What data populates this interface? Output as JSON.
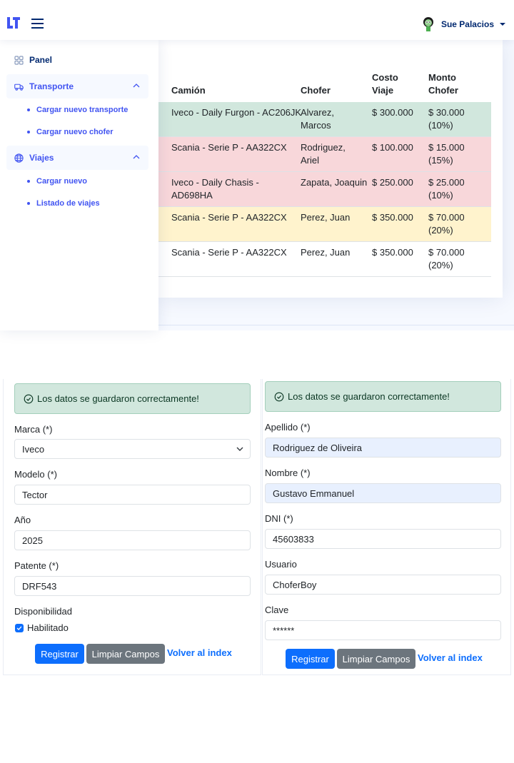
{
  "header": {
    "user_name": "Sue Palacios",
    "icons": {
      "logo": "logo-icon",
      "menu": "hamburger-icon",
      "avatar": "avatar-icon"
    }
  },
  "sidebar": {
    "items": [
      {
        "label": "Panel",
        "icon": "grid-icon"
      },
      {
        "label": "Transporte",
        "icon": "truck-icon",
        "children": [
          "Cargar nuevo transporte",
          "Cargar nuevo chofer"
        ]
      },
      {
        "label": "Viajes",
        "icon": "globe-icon",
        "children": [
          "Cargar nuevo",
          "Listado de viajes"
        ]
      }
    ]
  },
  "trips_table": {
    "headers": {
      "camion": "Camión",
      "chofer": "Chofer",
      "costo_1": "Costo",
      "costo_2": "Viaje",
      "monto_1": "Monto",
      "monto_2": "Chofer"
    },
    "rows": [
      {
        "camion": "Iveco - Daily Furgon - AC206JK",
        "chofer_1": "Alvarez,",
        "chofer_2": "Marcos",
        "costo": "$ 300.000",
        "monto": "$ 30.000 (10%)",
        "status": "success"
      },
      {
        "camion": "Scania - Serie P - AA322CX",
        "chofer_1": "Rodriguez,",
        "chofer_2": "Ariel",
        "costo": "$ 100.000",
        "monto": "$ 15.000 (15%)",
        "status": "danger"
      },
      {
        "camion_1": "Iveco - Daily Chasis -",
        "camion_2": "AD698HA",
        "chofer": "Zapata, Joaquin",
        "costo": "$ 250.000",
        "monto": "$ 25.000 (10%)",
        "status": "danger"
      },
      {
        "camion": "Scania - Serie P - AA322CX",
        "chofer": "Perez, Juan",
        "costo": "$ 350.000",
        "monto": "$ 70.000 (20%)",
        "status": "warning"
      },
      {
        "camion": "Scania - Serie P - AA322CX",
        "chofer": "Perez, Juan",
        "costo": "$ 350.000",
        "monto": "$ 70.000 (20%)",
        "status": "none"
      }
    ],
    "colors": {
      "success": "#d1e7dd",
      "danger": "#f8d7da",
      "warning": "#fff3cd"
    }
  },
  "transport_form": {
    "alert": "Los datos se guardaron correctamente!",
    "marca_label": "Marca (*)",
    "marca_value": "Iveco",
    "modelo_label": "Modelo (*)",
    "modelo_value": "Tector",
    "anio_label": "Año",
    "anio_value": "2025",
    "patente_label": "Patente (*)",
    "patente_value": "DRF543",
    "disponibilidad_label": "Disponibilidad",
    "habilitado_label": "Habilitado",
    "habilitado_checked": true,
    "registrar": "Registrar",
    "limpiar": "Limpiar Campos",
    "volver": "Volver al index"
  },
  "driver_form": {
    "alert": "Los datos se guardaron correctamente!",
    "apellido_label": "Apellido (*)",
    "apellido_value": "Rodriguez de Oliveira",
    "nombre_label": "Nombre (*)",
    "nombre_value": "Gustavo Emmanuel",
    "dni_label": "DNI (*)",
    "dni_value": "45603833",
    "usuario_label": "Usuario",
    "usuario_value": "ChoferBoy",
    "clave_label": "Clave",
    "clave_value": "******",
    "registrar": "Registrar",
    "limpiar": "Limpiar Campos",
    "volver": "Volver al index"
  },
  "colors": {
    "nav_dark": "#012970",
    "accent": "#4154f1",
    "primary": "#0d6efd",
    "secondary": "#6c757d"
  }
}
